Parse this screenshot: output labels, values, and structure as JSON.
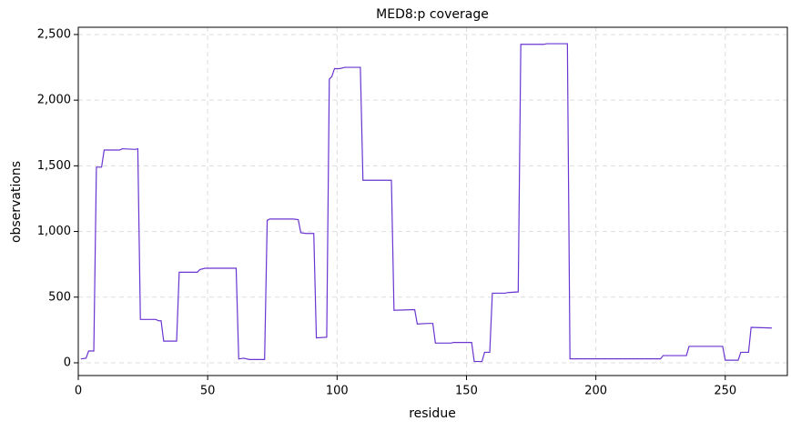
{
  "chart_data": {
    "type": "line",
    "title": "MED8:p coverage",
    "x_label": "residue",
    "y_label": "observations",
    "x": [
      1,
      3,
      4,
      6,
      7,
      9,
      10,
      16,
      17,
      22,
      23,
      24,
      30,
      31,
      32,
      33,
      38,
      39,
      46,
      47,
      49,
      61,
      62,
      64,
      66,
      72,
      73,
      74,
      83,
      85,
      86,
      88,
      91,
      92,
      96,
      97,
      98,
      99,
      101,
      103,
      109,
      110,
      121,
      122,
      130,
      131,
      135,
      137,
      138,
      144,
      145,
      152,
      153,
      156,
      157,
      159,
      160,
      165,
      166,
      170,
      171,
      180,
      181,
      189,
      190,
      200,
      215,
      225,
      226,
      235,
      236,
      249,
      250,
      255,
      256,
      259,
      260,
      268
    ],
    "series": [
      {
        "name": "coverage",
        "color": "#6a35d0",
        "values": [
          30,
          35,
          90,
          90,
          1490,
          1490,
          1620,
          1620,
          1630,
          1625,
          1630,
          330,
          330,
          320,
          320,
          165,
          165,
          690,
          690,
          710,
          720,
          720,
          30,
          35,
          25,
          25,
          1085,
          1095,
          1095,
          1090,
          990,
          985,
          985,
          190,
          195,
          2160,
          2180,
          2240,
          2240,
          2250,
          2250,
          1390,
          1390,
          400,
          405,
          295,
          300,
          300,
          150,
          150,
          155,
          155,
          10,
          10,
          80,
          80,
          530,
          530,
          535,
          540,
          2425,
          2425,
          2430,
          2430,
          30,
          30,
          30,
          30,
          55,
          55,
          125,
          125,
          20,
          20,
          80,
          80,
          270,
          265
        ]
      }
    ],
    "xlim": [
      0,
      274
    ],
    "ylim": [
      -97,
      2555
    ],
    "xticks": [
      0,
      50,
      100,
      150,
      200,
      250
    ],
    "yticks": [
      0,
      500,
      {
        "value": 1000,
        "label": "1,000"
      },
      {
        "value": 1500,
        "label": "1,500"
      },
      {
        "value": 2000,
        "label": "2,000"
      },
      {
        "value": 2500,
        "label": "2,500"
      }
    ],
    "grid": true
  }
}
